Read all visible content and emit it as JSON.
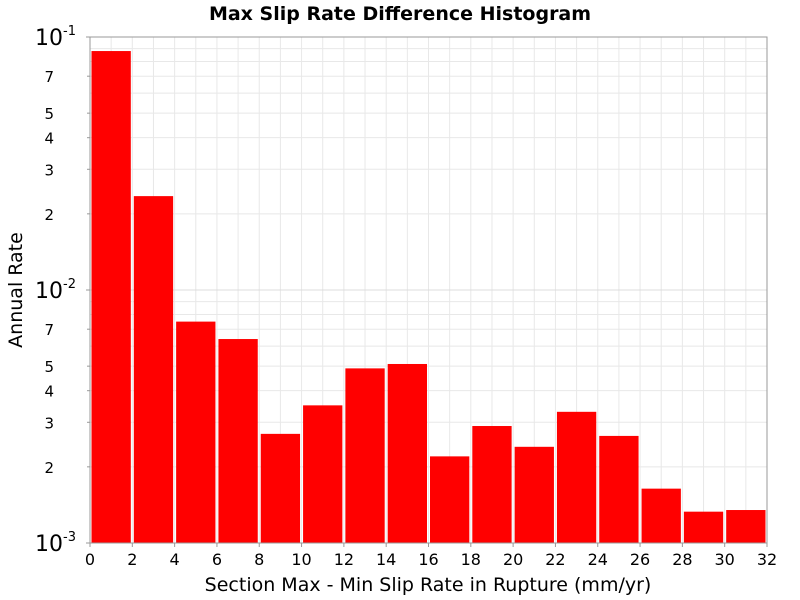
{
  "chart_data": {
    "type": "bar",
    "title": "Max Slip Rate Difference Histogram",
    "xlabel": "Section Max - Min Slip Rate in Rupture (mm/yr)",
    "ylabel": "Annual Rate",
    "y_scale": "log",
    "xlim": [
      0,
      32
    ],
    "ylim": [
      0.001,
      0.1
    ],
    "bin_width": 2,
    "x_ticks": [
      "0",
      "2",
      "4",
      "6",
      "8",
      "10",
      "12",
      "14",
      "16",
      "18",
      "20",
      "22",
      "24",
      "26",
      "28",
      "30",
      "32"
    ],
    "y_decade_ticks": [
      {
        "base": "10",
        "exp": "-3"
      },
      {
        "base": "10",
        "exp": "-2"
      },
      {
        "base": "10",
        "exp": "-1"
      }
    ],
    "y_minor_ticks": [
      "2",
      "3",
      "4",
      "5",
      "7"
    ],
    "grid": true,
    "bar_color": "#ff0000",
    "bin_centers": [
      1,
      3,
      5,
      7,
      9,
      11,
      13,
      15,
      17,
      19,
      21,
      23,
      25,
      27,
      29,
      31
    ],
    "values": [
      0.088,
      0.0235,
      0.0075,
      0.0064,
      0.0027,
      0.0035,
      0.0049,
      0.0051,
      0.0022,
      0.0029,
      0.0024,
      0.0033,
      0.00265,
      0.00164,
      0.00133,
      0.00135
    ]
  }
}
